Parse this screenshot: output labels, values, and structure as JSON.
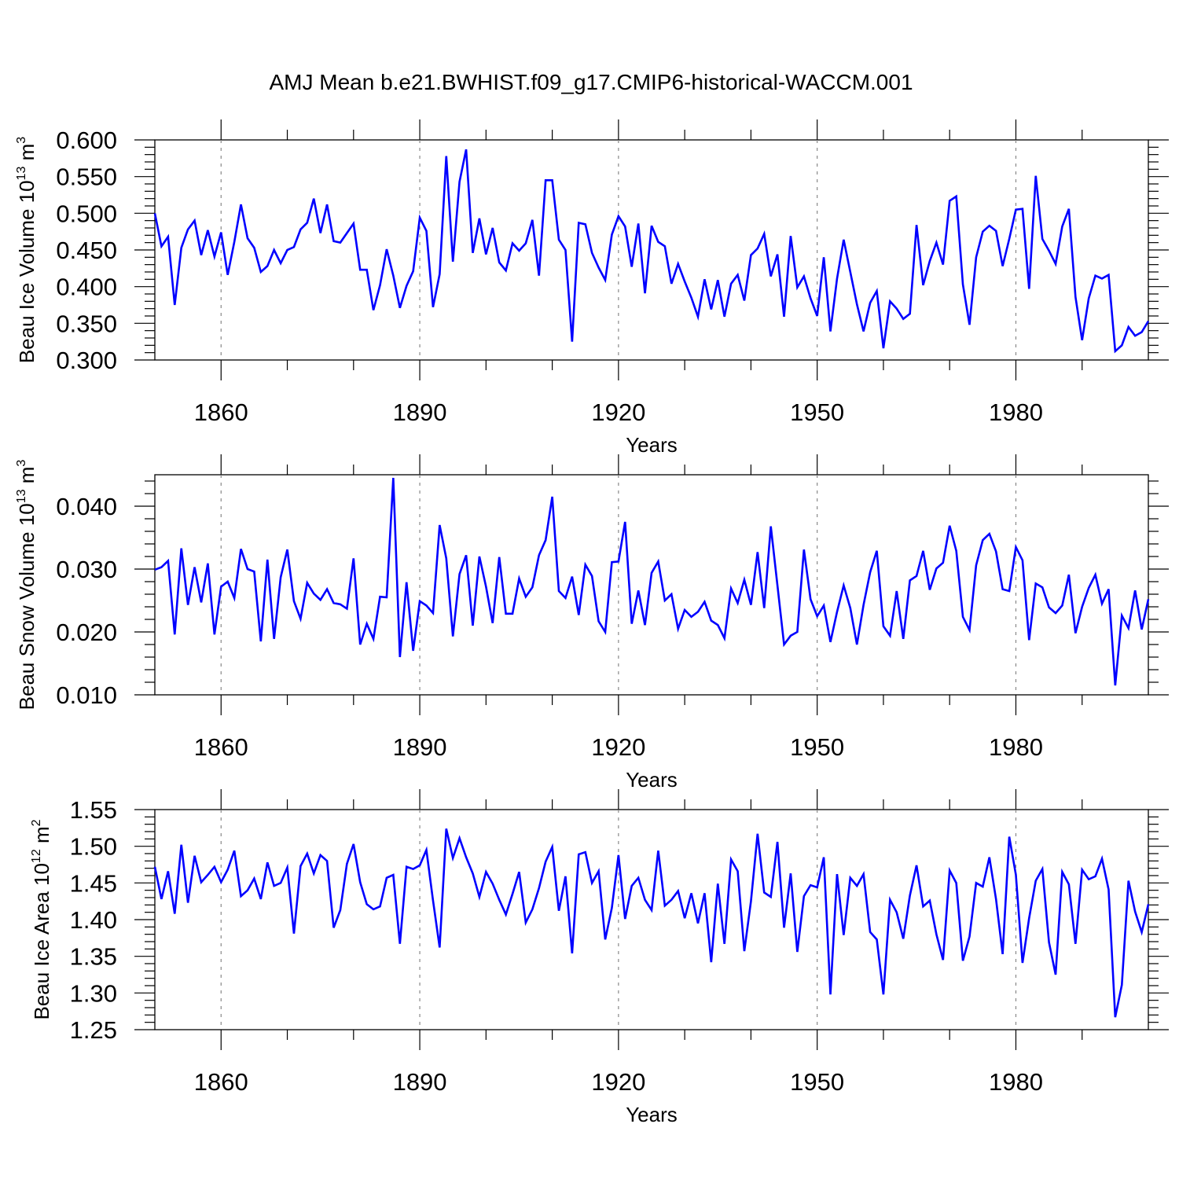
{
  "title": "AMJ Mean b.e21.BWHIST.f09_g17.CMIP6-historical-WACCM.001",
  "line_color": "#0000ff",
  "chart_data": [
    {
      "type": "line",
      "ylabel": "Beau Ice Volume 10",
      "ylabel_exp": "13",
      "ylabel_unit": " m",
      "ylabel_unit_exp": "3",
      "xlabel": "Years",
      "xlim": [
        1850,
        2000
      ],
      "ylim": [
        0.3,
        0.6
      ],
      "yticks": [
        "0.300",
        "0.350",
        "0.400",
        "0.450",
        "0.500",
        "0.550",
        "0.600"
      ],
      "xticks": [
        "1860",
        "1890",
        "1920",
        "1950",
        "1980"
      ],
      "start_year": 1850,
      "values": [
        0.5,
        0.455,
        0.468,
        0.375,
        0.453,
        0.478,
        0.49,
        0.443,
        0.477,
        0.441,
        0.474,
        0.416,
        0.461,
        0.512,
        0.466,
        0.453,
        0.42,
        0.428,
        0.45,
        0.432,
        0.45,
        0.454,
        0.478,
        0.487,
        0.52,
        0.473,
        0.512,
        0.462,
        0.46,
        0.473,
        0.486,
        0.423,
        0.423,
        0.368,
        0.402,
        0.451,
        0.415,
        0.371,
        0.401,
        0.421,
        0.494,
        0.476,
        0.372,
        0.417,
        0.578,
        0.434,
        0.543,
        0.587,
        0.446,
        0.493,
        0.444,
        0.48,
        0.433,
        0.422,
        0.459,
        0.449,
        0.459,
        0.491,
        0.415,
        0.545,
        0.545,
        0.464,
        0.45,
        0.325,
        0.487,
        0.485,
        0.446,
        0.426,
        0.409,
        0.471,
        0.496,
        0.482,
        0.427,
        0.486,
        0.391,
        0.483,
        0.461,
        0.455,
        0.404,
        0.431,
        0.407,
        0.385,
        0.359,
        0.41,
        0.369,
        0.409,
        0.359,
        0.404,
        0.416,
        0.381,
        0.443,
        0.452,
        0.472,
        0.414,
        0.444,
        0.359,
        0.469,
        0.399,
        0.414,
        0.384,
        0.36,
        0.44,
        0.339,
        0.411,
        0.464,
        0.42,
        0.376,
        0.339,
        0.378,
        0.394,
        0.316,
        0.38,
        0.37,
        0.356,
        0.363,
        0.484,
        0.402,
        0.435,
        0.46,
        0.43,
        0.517,
        0.523,
        0.403,
        0.348,
        0.44,
        0.475,
        0.483,
        0.476,
        0.428,
        0.465,
        0.505,
        0.506,
        0.397,
        0.551,
        0.465,
        0.449,
        0.431,
        0.482,
        0.506,
        0.386,
        0.327,
        0.384,
        0.415,
        0.411,
        0.416,
        0.312,
        0.32,
        0.345,
        0.333,
        0.338,
        0.353
      ]
    },
    {
      "type": "line",
      "ylabel": "Beau Snow Volume 10",
      "ylabel_exp": "13",
      "ylabel_unit": " m",
      "ylabel_unit_exp": "3",
      "xlabel": "Years",
      "xlim": [
        1850,
        2000
      ],
      "ylim": [
        0.01,
        0.045
      ],
      "yticks": [
        "0.010",
        "0.020",
        "0.030",
        "0.040"
      ],
      "xticks": [
        "1860",
        "1890",
        "1920",
        "1950",
        "1980"
      ],
      "start_year": 1850,
      "values": [
        0.0299,
        0.0303,
        0.0313,
        0.0196,
        0.0333,
        0.0243,
        0.0303,
        0.0247,
        0.0309,
        0.0196,
        0.0272,
        0.028,
        0.0254,
        0.0332,
        0.03,
        0.0296,
        0.0185,
        0.0315,
        0.0189,
        0.0287,
        0.0331,
        0.0249,
        0.0221,
        0.0278,
        0.0261,
        0.0251,
        0.0268,
        0.0246,
        0.0244,
        0.0237,
        0.0317,
        0.018,
        0.0213,
        0.0189,
        0.0256,
        0.0255,
        0.0445,
        0.016,
        0.0279,
        0.017,
        0.0249,
        0.0242,
        0.023,
        0.037,
        0.0317,
        0.0193,
        0.0292,
        0.0322,
        0.021,
        0.032,
        0.0272,
        0.0214,
        0.0319,
        0.0229,
        0.0229,
        0.0285,
        0.0256,
        0.0271,
        0.0322,
        0.0346,
        0.0415,
        0.0265,
        0.0254,
        0.0288,
        0.0227,
        0.0307,
        0.0289,
        0.0217,
        0.02,
        0.0311,
        0.0312,
        0.0375,
        0.0213,
        0.0266,
        0.0211,
        0.0294,
        0.0312,
        0.025,
        0.026,
        0.0205,
        0.0235,
        0.0224,
        0.0232,
        0.0248,
        0.0218,
        0.0211,
        0.019,
        0.0269,
        0.0246,
        0.0283,
        0.0243,
        0.0327,
        0.0238,
        0.0368,
        0.0274,
        0.018,
        0.0194,
        0.02,
        0.0331,
        0.0252,
        0.0225,
        0.0242,
        0.0184,
        0.0232,
        0.0274,
        0.0238,
        0.018,
        0.0243,
        0.0295,
        0.0329,
        0.0209,
        0.0194,
        0.0265,
        0.0189,
        0.0282,
        0.0289,
        0.0329,
        0.0267,
        0.0301,
        0.031,
        0.0369,
        0.0329,
        0.0224,
        0.0203,
        0.0306,
        0.0346,
        0.0356,
        0.0328,
        0.0268,
        0.0265,
        0.0335,
        0.0314,
        0.0187,
        0.0277,
        0.0271,
        0.0239,
        0.023,
        0.0242,
        0.0291,
        0.0198,
        0.024,
        0.027,
        0.0291,
        0.0245,
        0.0268,
        0.0115,
        0.0226,
        0.0206,
        0.0266,
        0.0204,
        0.0252
      ]
    },
    {
      "type": "line",
      "ylabel": "Beau Ice Area 10",
      "ylabel_exp": "12",
      "ylabel_unit": " m",
      "ylabel_unit_exp": "2",
      "xlabel": "Years",
      "xlim": [
        1850,
        2000
      ],
      "ylim": [
        1.25,
        1.55
      ],
      "yticks": [
        "1.25",
        "1.30",
        "1.35",
        "1.40",
        "1.45",
        "1.50",
        "1.55"
      ],
      "xticks": [
        "1860",
        "1890",
        "1920",
        "1950",
        "1980"
      ],
      "start_year": 1850,
      "values": [
        1.472,
        1.428,
        1.466,
        1.408,
        1.502,
        1.423,
        1.487,
        1.451,
        1.461,
        1.472,
        1.451,
        1.468,
        1.494,
        1.432,
        1.44,
        1.456,
        1.428,
        1.478,
        1.446,
        1.45,
        1.471,
        1.381,
        1.473,
        1.49,
        1.463,
        1.488,
        1.48,
        1.389,
        1.413,
        1.476,
        1.503,
        1.451,
        1.421,
        1.414,
        1.418,
        1.457,
        1.461,
        1.367,
        1.472,
        1.469,
        1.474,
        1.495,
        1.426,
        1.362,
        1.524,
        1.484,
        1.511,
        1.485,
        1.463,
        1.431,
        1.465,
        1.449,
        1.427,
        1.407,
        1.435,
        1.465,
        1.396,
        1.414,
        1.443,
        1.479,
        1.499,
        1.412,
        1.459,
        1.354,
        1.489,
        1.492,
        1.45,
        1.466,
        1.373,
        1.416,
        1.488,
        1.401,
        1.446,
        1.457,
        1.427,
        1.413,
        1.494,
        1.419,
        1.427,
        1.439,
        1.402,
        1.436,
        1.395,
        1.436,
        1.342,
        1.449,
        1.367,
        1.482,
        1.466,
        1.357,
        1.425,
        1.517,
        1.437,
        1.431,
        1.506,
        1.389,
        1.463,
        1.356,
        1.432,
        1.447,
        1.444,
        1.485,
        1.298,
        1.462,
        1.379,
        1.457,
        1.446,
        1.462,
        1.383,
        1.373,
        1.298,
        1.427,
        1.41,
        1.374,
        1.433,
        1.474,
        1.418,
        1.426,
        1.38,
        1.345,
        1.467,
        1.45,
        1.344,
        1.377,
        1.45,
        1.445,
        1.485,
        1.428,
        1.353,
        1.513,
        1.461,
        1.341,
        1.402,
        1.453,
        1.469,
        1.369,
        1.325,
        1.465,
        1.448,
        1.367,
        1.468,
        1.455,
        1.459,
        1.483,
        1.441,
        1.267,
        1.311,
        1.453,
        1.411,
        1.383,
        1.421
      ]
    }
  ]
}
